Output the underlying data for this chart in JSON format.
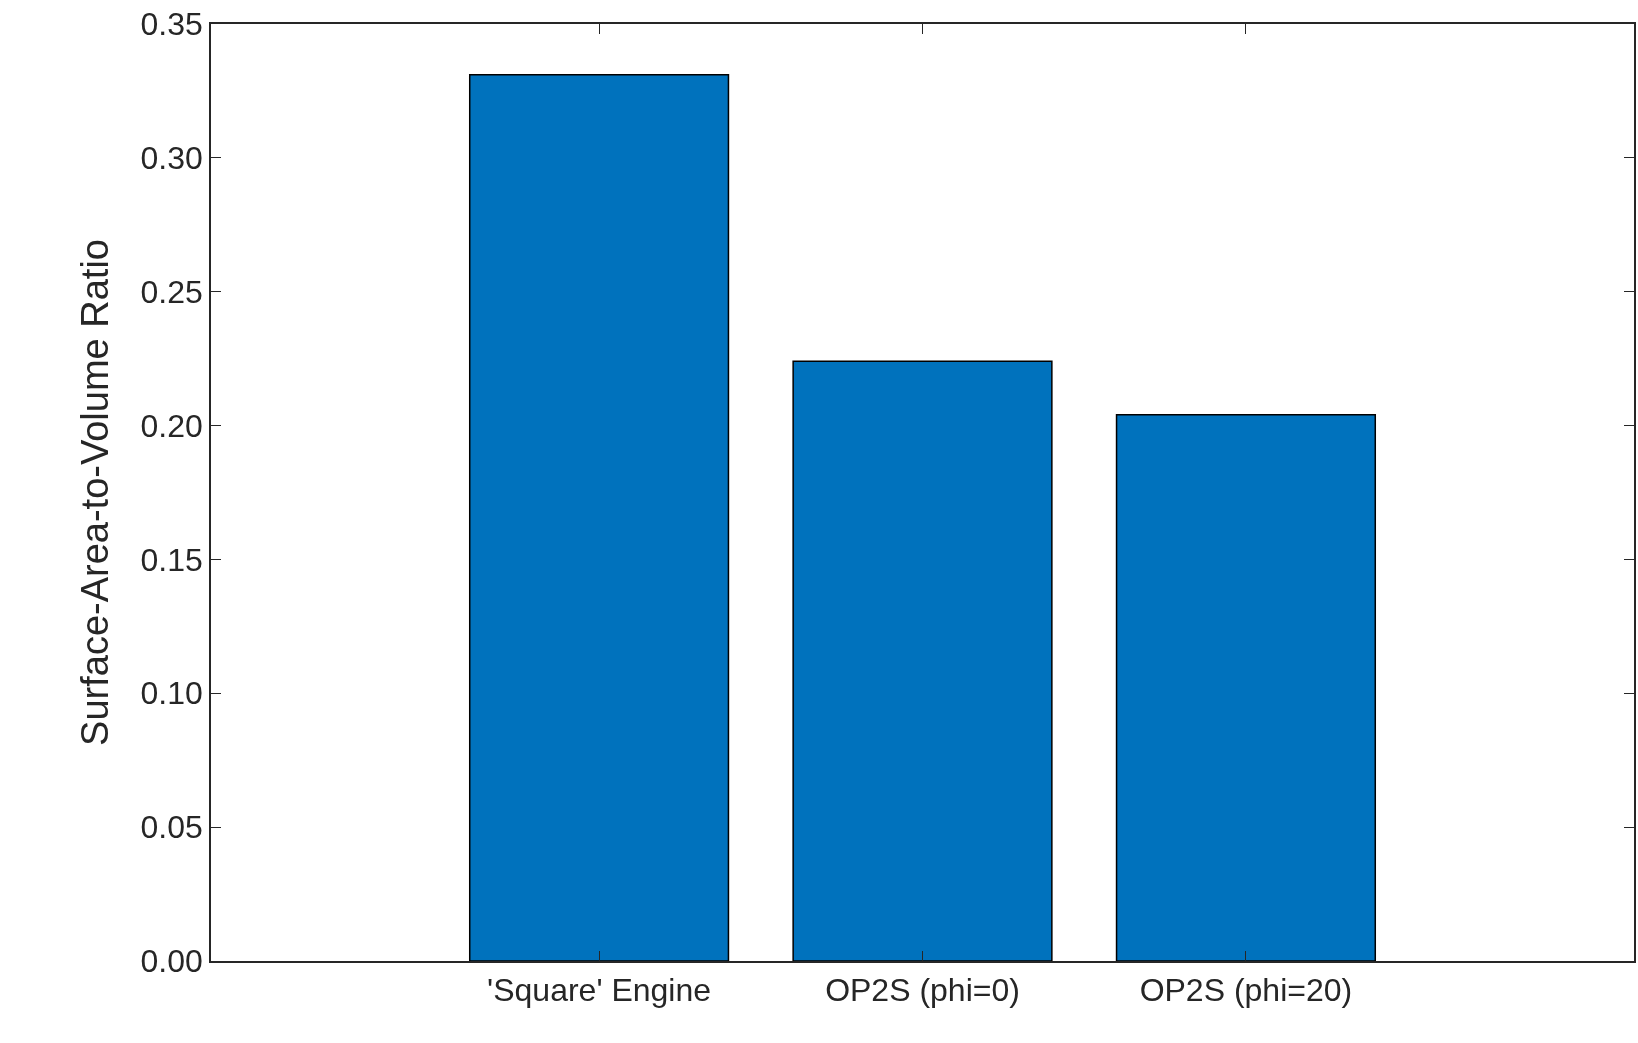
{
  "chart_data": {
    "type": "bar",
    "ylabel": "Surface-Area-to-Volume Ratio",
    "categories": [
      "'Square' Engine",
      "OP2S (phi=0)",
      "OP2S (phi=20)"
    ],
    "values": [
      0.331,
      0.224,
      0.204
    ],
    "color": "#0072bd",
    "ylim": [
      0,
      0.35
    ],
    "yticks": [
      {
        "value": 0,
        "label": "0.00"
      },
      {
        "value": 0.05,
        "label": "0.05"
      },
      {
        "value": 0.1,
        "label": "0.10"
      },
      {
        "value": 0.15,
        "label": "0.15"
      },
      {
        "value": 0.2,
        "label": "0.20"
      },
      {
        "value": 0.25,
        "label": "0.25"
      },
      {
        "value": 0.3,
        "label": "0.30"
      },
      {
        "value": 0.35,
        "label": "0.35"
      }
    ],
    "grid": false
  }
}
